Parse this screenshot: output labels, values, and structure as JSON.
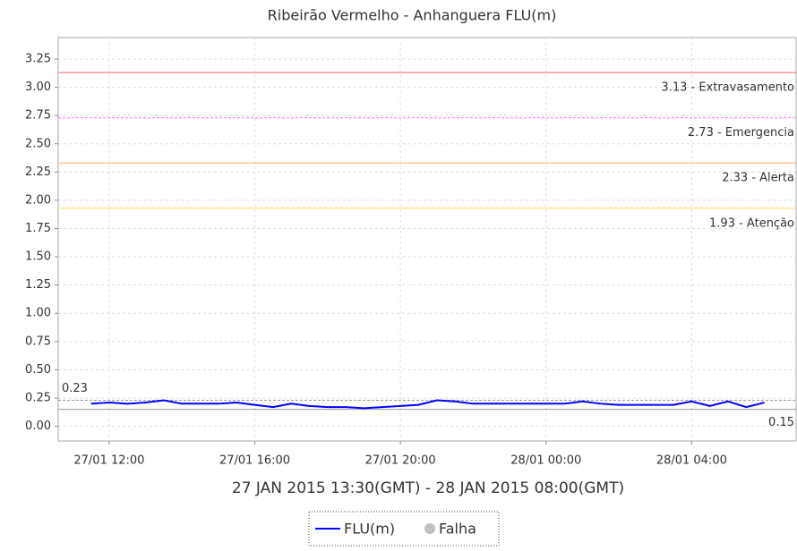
{
  "chart_data": {
    "type": "line",
    "title": "Ribeirão Vermelho - Anhanguera FLU(m)",
    "x_label": "27 JAN 2015 13:30(GMT) - 28 JAN 2015 08:00(GMT)",
    "x": [
      11.5,
      12,
      12.5,
      13,
      13.5,
      14,
      14.5,
      15,
      15.5,
      16,
      16.5,
      17,
      17.5,
      18,
      18.5,
      19,
      19.5,
      20,
      20.5,
      21,
      21.5,
      22,
      22.5,
      23,
      23.5,
      24,
      24.5,
      25,
      25.5,
      26,
      26.5,
      27,
      27.5,
      28,
      28.5,
      29,
      29.5,
      30
    ],
    "series": [
      {
        "name": "FLU(m)",
        "color": "#0000ff",
        "values": [
          0.2,
          0.21,
          0.2,
          0.21,
          0.23,
          0.2,
          0.2,
          0.2,
          0.21,
          0.19,
          0.17,
          0.2,
          0.18,
          0.17,
          0.17,
          0.16,
          0.17,
          0.18,
          0.19,
          0.23,
          0.22,
          0.2,
          0.2,
          0.2,
          0.2,
          0.2,
          0.2,
          0.22,
          0.2,
          0.19,
          0.19,
          0.19,
          0.19,
          0.22,
          0.18,
          0.22,
          0.17,
          0.21
        ]
      }
    ],
    "failure_legend": {
      "name": "Falha",
      "color": "#c0c0c0"
    },
    "thresholds": [
      {
        "value": 3.13,
        "label": "3.13 - Extravasamento",
        "color": "#ff8080",
        "dashed": false
      },
      {
        "value": 2.73,
        "label": "2.73 - Emergencia",
        "color": "#ff80ff",
        "dashed": true
      },
      {
        "value": 2.33,
        "label": "2.33 - Alerta",
        "color": "#ffc080",
        "dashed": false
      },
      {
        "value": 1.93,
        "label": "1.93 - Atenção",
        "color": "#ffe080",
        "dashed": false
      }
    ],
    "max_line": 0.23,
    "min_line": 0.15,
    "xlim": [
      10.6,
      30.87
    ],
    "xticks": [
      {
        "value": 12,
        "label": "27/01 12:00"
      },
      {
        "value": 16,
        "label": "27/01 16:00"
      },
      {
        "value": 20,
        "label": "27/01 20:00"
      },
      {
        "value": 24,
        "label": "28/01 00:00"
      },
      {
        "value": 28,
        "label": "28/01 04:00"
      }
    ],
    "ylim": [
      -0.13,
      3.44
    ],
    "yticks": [
      {
        "value": 0,
        "label": "0.00"
      },
      {
        "value": 0.25,
        "label": "0.25"
      },
      {
        "value": 0.5,
        "label": "0.50"
      },
      {
        "value": 0.75,
        "label": "0.75"
      },
      {
        "value": 1,
        "label": "1.00"
      },
      {
        "value": 1.25,
        "label": "1.25"
      },
      {
        "value": 1.5,
        "label": "1.50"
      },
      {
        "value": 1.75,
        "label": "1.75"
      },
      {
        "value": 2,
        "label": "2.00"
      },
      {
        "value": 2.25,
        "label": "2.25"
      },
      {
        "value": 2.5,
        "label": "2.50"
      },
      {
        "value": 2.75,
        "label": "2.75"
      },
      {
        "value": 3,
        "label": "3.00"
      },
      {
        "value": 3.25,
        "label": "3.25"
      }
    ],
    "grid": true
  }
}
